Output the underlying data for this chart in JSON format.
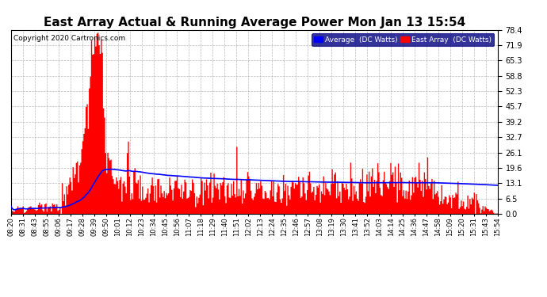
{
  "title": "East Array Actual & Running Average Power Mon Jan 13 15:54",
  "copyright": "Copyright 2020 Cartronics.com",
  "legend_avg": "Average  (DC Watts)",
  "legend_east": "East Array  (DC Watts)",
  "yticks": [
    0.0,
    6.5,
    13.1,
    19.6,
    26.1,
    32.7,
    39.2,
    45.7,
    52.3,
    58.8,
    65.3,
    71.9,
    78.4
  ],
  "ymax": 78.4,
  "ymin": 0.0,
  "bg_color": "#ffffff",
  "grid_color": "#aaaaaa",
  "bar_color": "#ff0000",
  "avg_color": "#0000ff",
  "title_fontsize": 11,
  "copyright_fontsize": 6.5,
  "tick_fontsize": 6,
  "ytick_fontsize": 7,
  "time_labels": [
    "08:20",
    "08:31",
    "08:43",
    "08:55",
    "09:06",
    "09:17",
    "09:28",
    "09:39",
    "09:50",
    "10:01",
    "10:12",
    "10:23",
    "10:34",
    "10:45",
    "10:56",
    "11:07",
    "11:18",
    "11:29",
    "11:40",
    "11:51",
    "12:02",
    "12:13",
    "12:24",
    "12:35",
    "12:46",
    "12:57",
    "13:08",
    "13:19",
    "13:30",
    "13:41",
    "13:52",
    "14:03",
    "14:14",
    "14:25",
    "14:36",
    "14:47",
    "14:58",
    "15:09",
    "15:20",
    "15:31",
    "15:43",
    "15:54"
  ]
}
